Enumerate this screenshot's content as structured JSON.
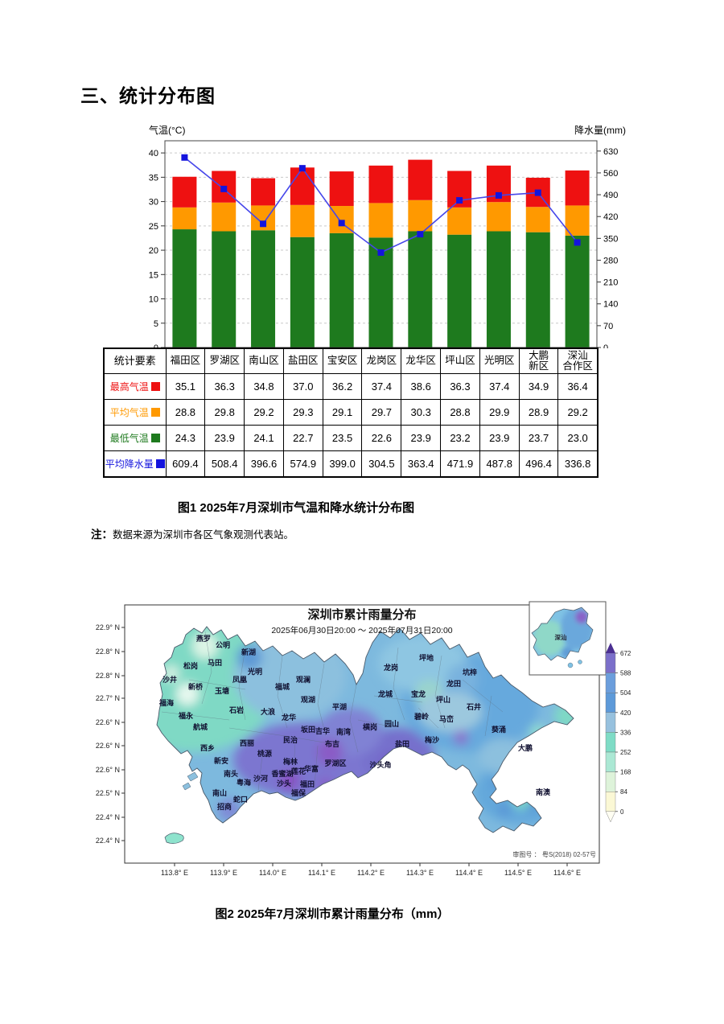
{
  "page": {
    "section_title": "三、统计分布图",
    "figure1_caption": "图1  2025年7月深圳市气温和降水统计分布图",
    "note_label": "注：",
    "note_text": "数据来源为深圳市各区气象观测代表站。",
    "figure2_caption": "图2  2025年7月深圳市累计雨量分布（mm）"
  },
  "chart_data": {
    "type": "combo-bar-line",
    "categories": [
      "福田区",
      "罗湖区",
      "南山区",
      "盐田区",
      "宝安区",
      "龙岗区",
      "龙华区",
      "坪山区",
      "光明区",
      "大鹏新区",
      "深汕合作区"
    ],
    "series": [
      {
        "name": "最高气温",
        "style": "bar",
        "color": "#ee1111",
        "values": [
          35.1,
          36.3,
          34.8,
          37.0,
          36.2,
          37.4,
          38.6,
          36.3,
          37.4,
          34.9,
          36.4
        ]
      },
      {
        "name": "平均气温",
        "style": "bar",
        "color": "#ff9900",
        "values": [
          28.8,
          29.8,
          29.2,
          29.3,
          29.1,
          29.7,
          30.3,
          28.8,
          29.9,
          28.9,
          29.2
        ]
      },
      {
        "name": "最低气温",
        "style": "bar",
        "color": "#1e7a1e",
        "values": [
          24.3,
          23.9,
          24.1,
          22.7,
          23.5,
          22.6,
          23.9,
          23.2,
          23.9,
          23.7,
          23.0
        ]
      },
      {
        "name": "平均降水量",
        "style": "line",
        "axis": "right",
        "color": "#1414dd",
        "values": [
          609.4,
          508.4,
          396.6,
          574.9,
          399.0,
          304.5,
          363.4,
          471.9,
          487.8,
          496.4,
          336.8
        ]
      }
    ],
    "left_axis": {
      "label": "气温(°C)",
      "min": 0,
      "max": 42.5,
      "ticks": [
        0,
        5,
        10,
        15,
        20,
        25,
        30,
        35,
        40
      ]
    },
    "right_axis": {
      "label": "降水量(mm)",
      "min": 0,
      "max": 663,
      "ticks": [
        0,
        70,
        140,
        210,
        280,
        350,
        420,
        490,
        560,
        630
      ]
    },
    "grid": true,
    "legend_position": "table-rows"
  },
  "table": {
    "corner_label": "统计要素"
  },
  "map": {
    "title": "深圳市累计雨量分布",
    "subtitle": "2025年06月30日20:00 ～ 2025年07月31日20:00",
    "lat_ticks": [
      "22.9° N",
      "22.8° N",
      "22.8° N",
      "22.7° N",
      "22.6° N",
      "22.6° N",
      "22.6° N",
      "22.5° N",
      "22.4° N",
      "22.4° N"
    ],
    "lon_ticks": [
      "113.8° E",
      "113.9° E",
      "114.0° E",
      "114.1° E",
      "114.2° E",
      "114.3° E",
      "114.4° E",
      "114.5° E",
      "114.6° E"
    ],
    "colorbar": {
      "levels": [
        672,
        588,
        504,
        420,
        336,
        252,
        168,
        84,
        0
      ],
      "colors": [
        "#7b6fca",
        "#6b9edc",
        "#5d9ad9",
        "#97c1de",
        "#7fdcc6",
        "#abe8d4",
        "#def3da",
        "#fbf8d5"
      ],
      "arrow_top_color": "#4b2f92",
      "arrow_bottom_color": "#fffef2"
    },
    "inset_label": "深汕",
    "credit": "审图号 ： 粤S(2018) 02-57号",
    "places": [
      [
        "燕罗",
        148,
        52
      ],
      [
        "公明",
        172,
        60
      ],
      [
        "新湖",
        204,
        69
      ],
      [
        "松岗",
        132,
        86
      ],
      [
        "马田",
        162,
        82
      ],
      [
        "光明",
        212,
        93
      ],
      [
        "凤凰",
        193,
        103
      ],
      [
        "观澜",
        272,
        103
      ],
      [
        "沙井",
        106,
        103
      ],
      [
        "新桥",
        138,
        112
      ],
      [
        "玉塘",
        171,
        117
      ],
      [
        "福城",
        246,
        112
      ],
      [
        "观湖",
        278,
        128
      ],
      [
        "福海",
        102,
        132
      ],
      [
        "石岩",
        189,
        141
      ],
      [
        "大浪",
        228,
        143
      ],
      [
        "龙华",
        254,
        150
      ],
      [
        "平湖",
        317,
        137
      ],
      [
        "福永",
        126,
        148
      ],
      [
        "航城",
        144,
        162
      ],
      [
        "坂田",
        278,
        165
      ],
      [
        "吉华",
        296,
        167
      ],
      [
        "南湾",
        322,
        168
      ],
      [
        "横岗",
        355,
        162
      ],
      [
        "园山",
        382,
        158
      ],
      [
        "民治",
        256,
        178
      ],
      [
        "西乡",
        153,
        188
      ],
      [
        "西丽",
        202,
        182
      ],
      [
        "布吉",
        308,
        183
      ],
      [
        "盐田",
        395,
        183
      ],
      [
        "坪地",
        425,
        76
      ],
      [
        "龙岗",
        381,
        88
      ],
      [
        "坑梓",
        479,
        94
      ],
      [
        "龙田",
        459,
        108
      ],
      [
        "龙城",
        374,
        121
      ],
      [
        "宝龙",
        415,
        121
      ],
      [
        "坪山",
        446,
        128
      ],
      [
        "石井",
        484,
        137
      ],
      [
        "碧岭",
        419,
        149
      ],
      [
        "马峦",
        450,
        152
      ],
      [
        "葵涌",
        515,
        165
      ],
      [
        "梅沙",
        432,
        178
      ],
      [
        "大鹏",
        548,
        188
      ],
      [
        "新安",
        170,
        204
      ],
      [
        "南头",
        182,
        220
      ],
      [
        "粤海",
        198,
        231
      ],
      [
        "沙河",
        219,
        226
      ],
      [
        "南山",
        168,
        244
      ],
      [
        "蛇口",
        194,
        252
      ],
      [
        "招商",
        174,
        261
      ],
      [
        "桃源",
        224,
        195
      ],
      [
        "梅林",
        256,
        205
      ],
      [
        "香蜜湖",
        246,
        220
      ],
      [
        "莲花",
        266,
        217
      ],
      [
        "华富",
        282,
        214
      ],
      [
        "沙头",
        248,
        232
      ],
      [
        "福田",
        277,
        233
      ],
      [
        "福保",
        266,
        244
      ],
      [
        "罗湖区",
        312,
        207
      ],
      [
        "沙头角",
        368,
        209
      ],
      [
        "南澳",
        570,
        243
      ]
    ]
  }
}
